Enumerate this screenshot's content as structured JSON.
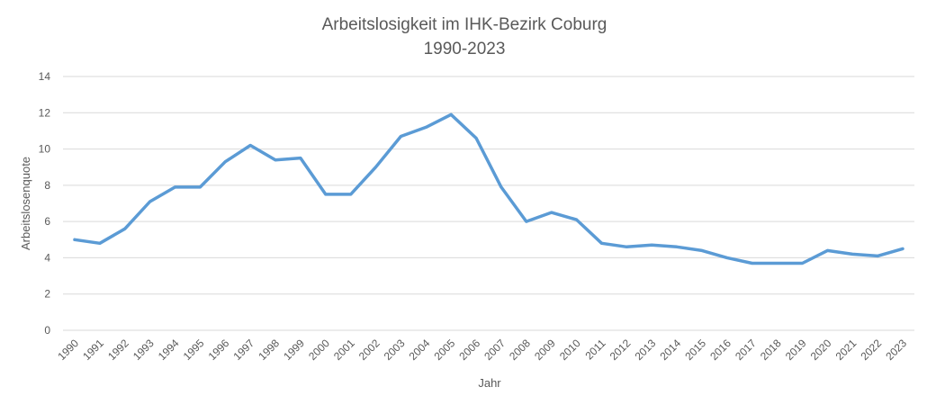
{
  "chart_data": {
    "type": "line",
    "title": "Arbeitslosigkeit im IHK-Bezirk Coburg",
    "subtitle": "1990-2023",
    "xlabel": "Jahr",
    "ylabel": "Arbeitslosenquote",
    "ylim": [
      0,
      14
    ],
    "yticks": [
      0,
      2,
      4,
      6,
      8,
      10,
      12,
      14
    ],
    "grid": true,
    "categories": [
      "1990",
      "1991",
      "1992",
      "1993",
      "1994",
      "1995",
      "1996",
      "1997",
      "1998",
      "1999",
      "2000",
      "2001",
      "2002",
      "2003",
      "2004",
      "2005",
      "2006",
      "2007",
      "2008",
      "2009",
      "2010",
      "2011",
      "2012",
      "2013",
      "2014",
      "2015",
      "2016",
      "2017",
      "2018",
      "2019",
      "2020",
      "2021",
      "2022",
      "2023"
    ],
    "series": [
      {
        "color": "#5b9bd5",
        "values": [
          5.0,
          4.8,
          5.6,
          7.1,
          7.9,
          7.9,
          9.3,
          10.2,
          9.4,
          9.5,
          7.5,
          7.5,
          9.0,
          10.7,
          11.2,
          11.9,
          10.6,
          7.9,
          6.0,
          6.5,
          6.1,
          4.8,
          4.6,
          4.7,
          4.6,
          4.4,
          4.0,
          3.7,
          3.7,
          3.7,
          4.4,
          4.2,
          4.1,
          4.5
        ]
      }
    ]
  }
}
